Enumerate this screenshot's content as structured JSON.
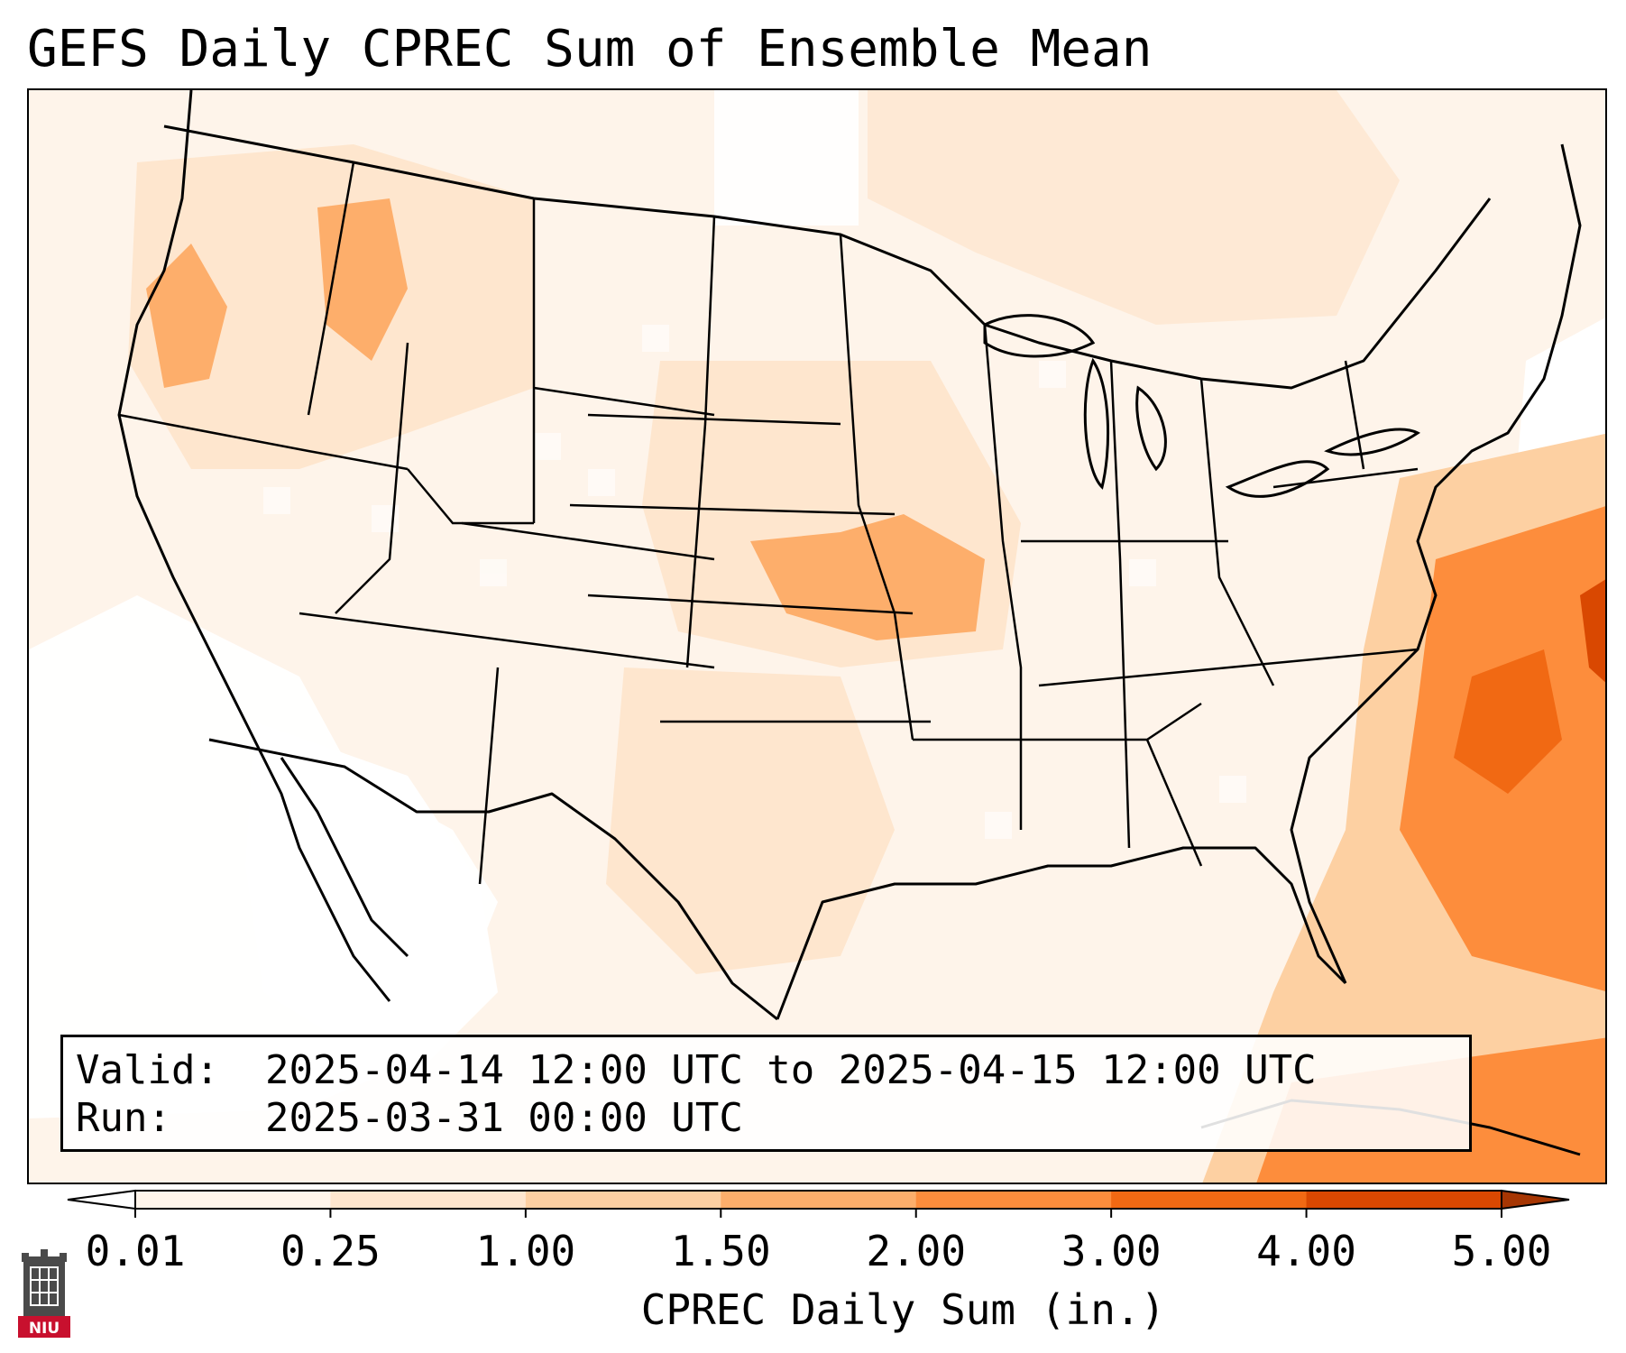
{
  "title": "GEFS Daily CPREC Sum of Ensemble Mean",
  "info": {
    "valid_label": "Valid:",
    "valid_value": "2025-04-14 12:00 UTC to 2025-04-15 12:00 UTC",
    "run_label": "Run:",
    "run_value": "2025-03-31 00:00 UTC"
  },
  "colorbar": {
    "label": "CPREC Daily Sum (in.)",
    "ticks": [
      "0.01",
      "0.25",
      "1.00",
      "1.50",
      "2.00",
      "3.00",
      "4.00",
      "5.00"
    ],
    "colors": [
      "#fff5eb",
      "#fee6ce",
      "#fdd0a2",
      "#fdae6b",
      "#fd8d3c",
      "#f16913",
      "#d94801"
    ],
    "under_color": "#ffffff",
    "over_color": "#a63603"
  },
  "logo": {
    "text": "NIU",
    "icon": "niu-tower-logo-icon",
    "color": "#c8102e"
  },
  "map": {
    "projection_hint": "Lambert conformal, CONUS",
    "highlights": [
      "Heaviest amounts over Atlantic off Southeast coast",
      "Moderate amounts Pacific Northwest and central Plains/Missouri"
    ]
  }
}
